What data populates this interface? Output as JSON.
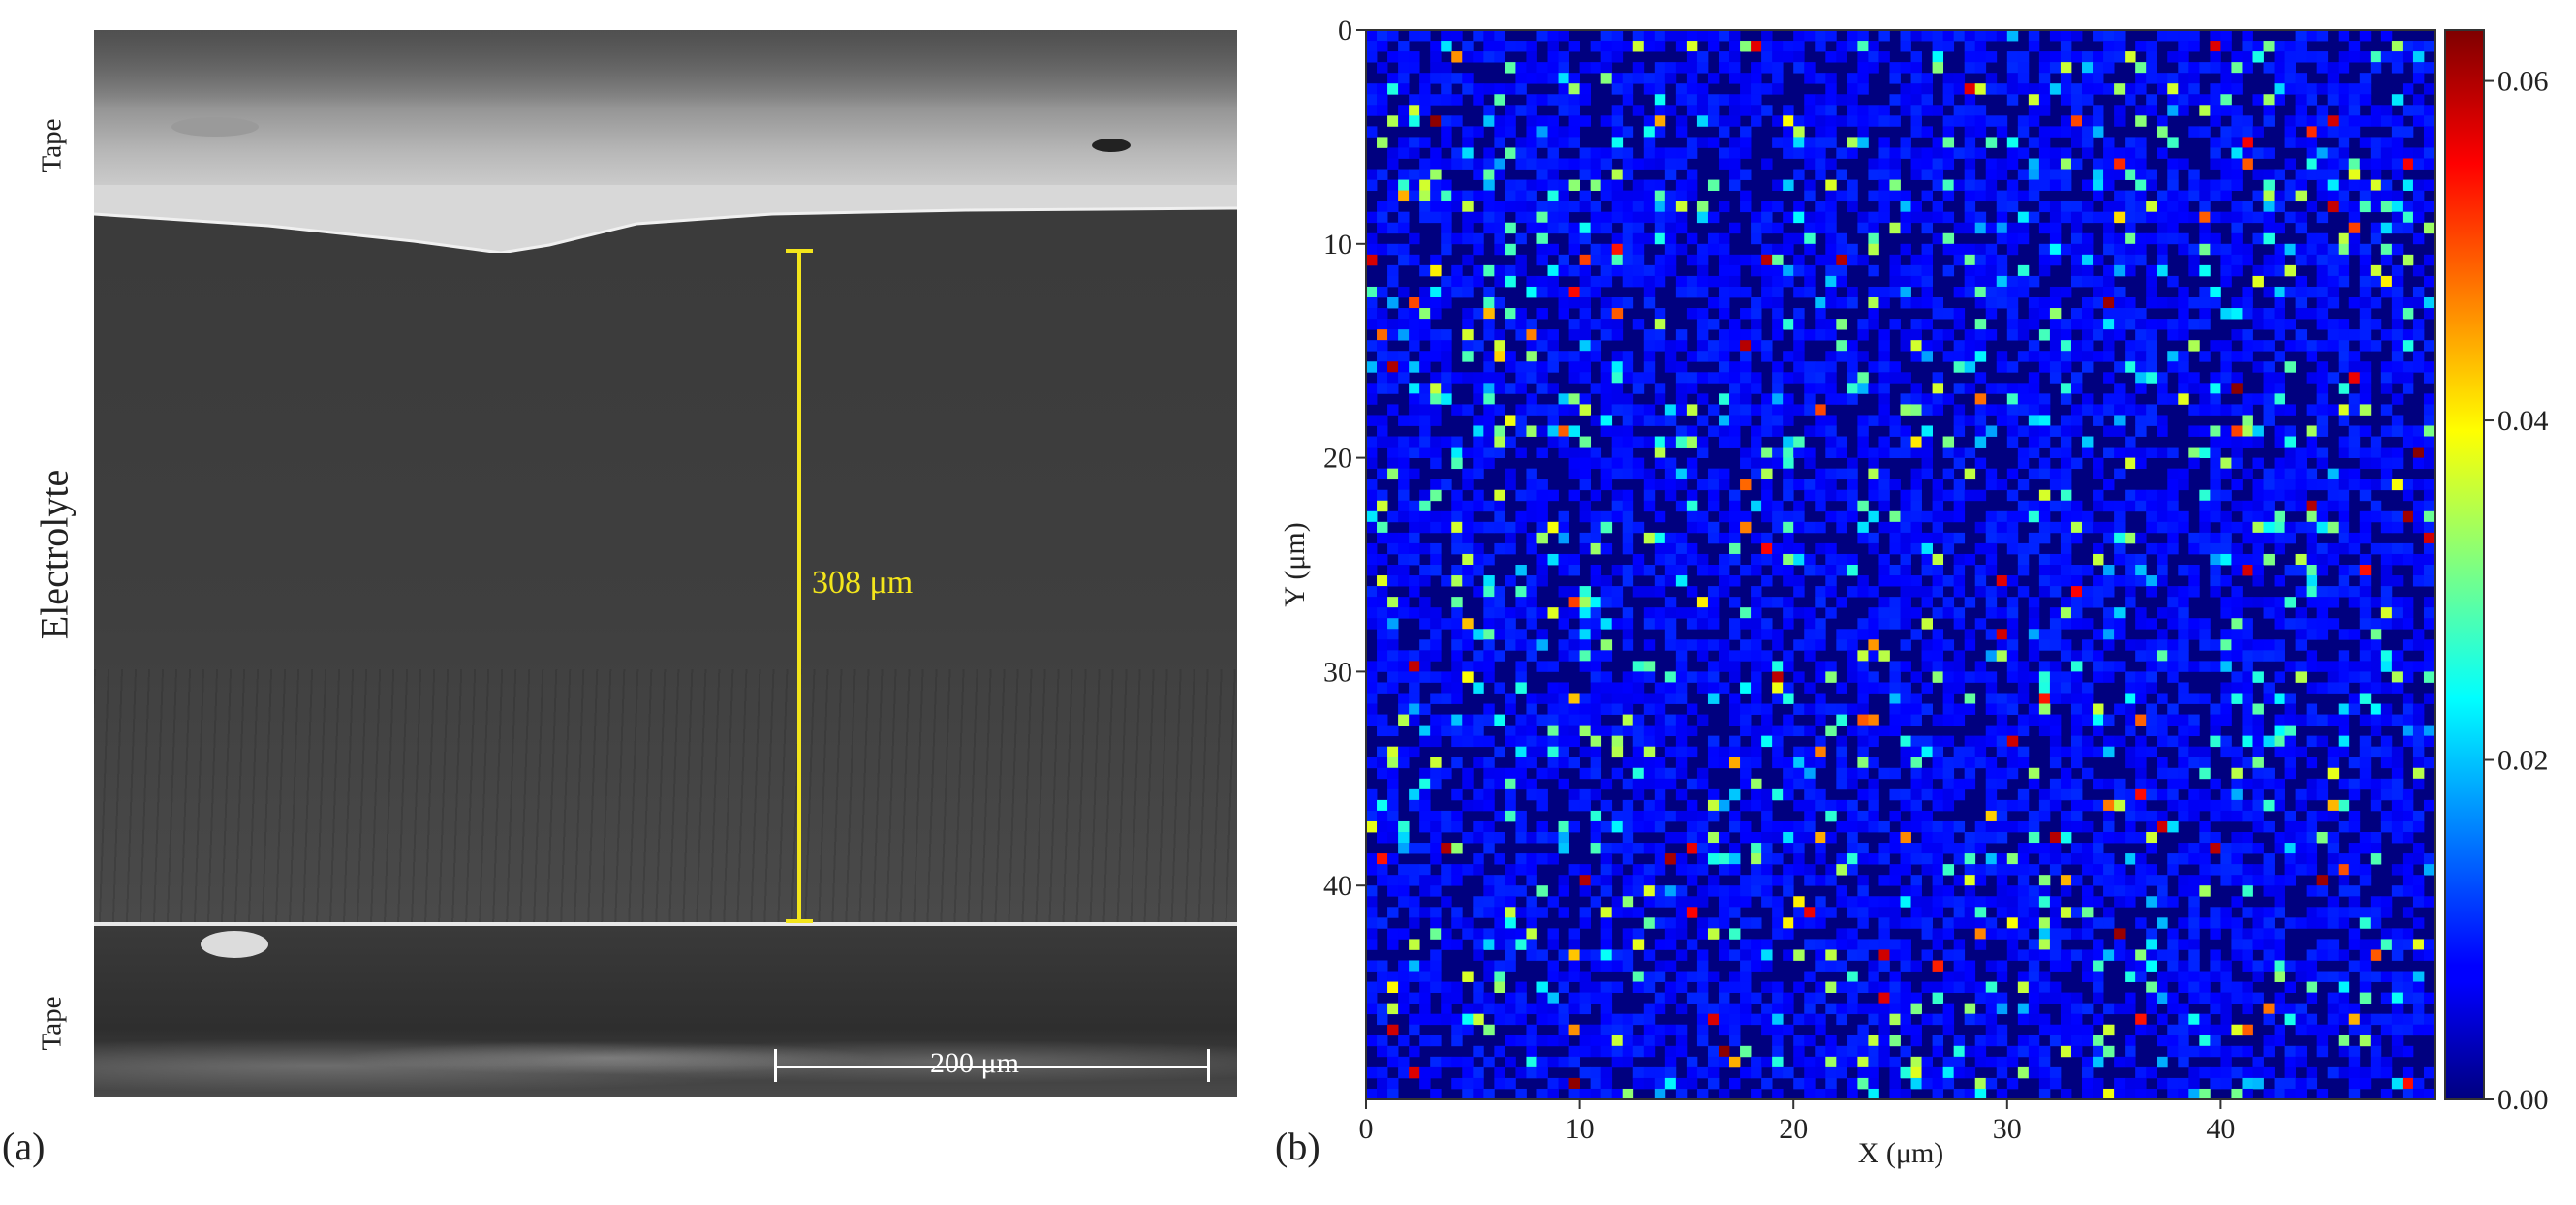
{
  "panel_a": {
    "letter": "(a)",
    "labels": {
      "tape_top": "Tape",
      "electrolyte": "Electrolyte",
      "tape_bottom": "Tape"
    },
    "thickness_label": "308 μm",
    "scalebar_label": "200 μm",
    "accent_color": "#f3e51b"
  },
  "panel_b": {
    "letter": "(b)"
  },
  "chart_data": {
    "type": "heatmap",
    "title": "",
    "xlabel": "X (μm)",
    "ylabel": "Y (μm)",
    "xlim": [
      0,
      50
    ],
    "ylim": [
      0,
      50
    ],
    "y_inverted": true,
    "x_ticks": [
      "0",
      "10",
      "20",
      "30",
      "40"
    ],
    "y_ticks": [
      "0",
      "10",
      "20",
      "30",
      "40"
    ],
    "colorbar": {
      "range": [
        0.0,
        0.063
      ],
      "ticks": [
        "0.00",
        "0.02",
        "0.04",
        "0.06"
      ],
      "colormap": "jet"
    },
    "grid": {
      "cols": 100,
      "rows": 100
    },
    "value_distribution": {
      "background_value": 0.0,
      "typical_value": 0.008,
      "occasional_value": 0.025,
      "max_value": 0.063
    },
    "legend": "none"
  }
}
